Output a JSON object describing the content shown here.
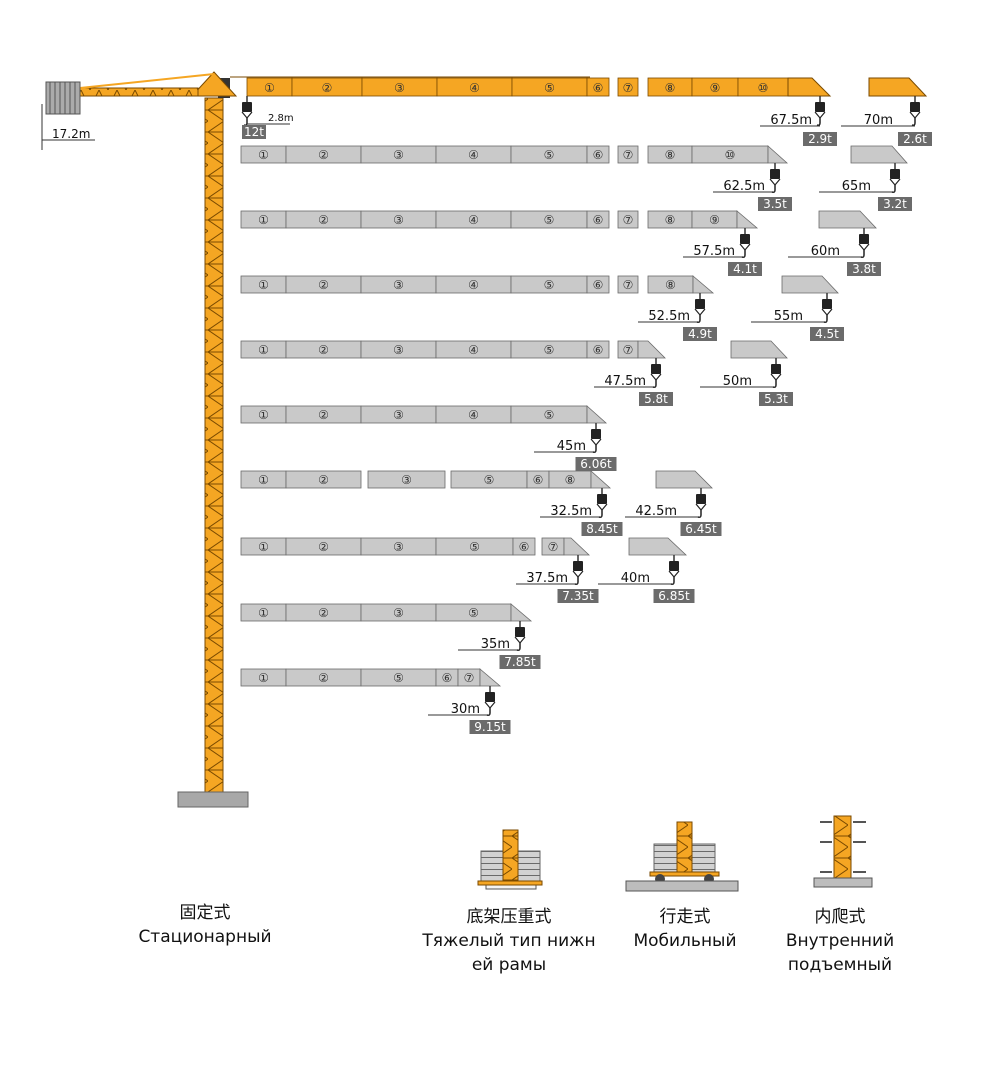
{
  "colors": {
    "yellow": "#F5A623",
    "grey_jib": "#C9C9C9",
    "outline": "#6a6a6a",
    "load_tag": "#6b6b6b",
    "load_text": "#ffffff",
    "text": "#111111"
  },
  "main_jib": {
    "segments": [
      "①",
      "②",
      "③",
      "④",
      "⑤",
      "⑥",
      "⑦",
      "⑧",
      "⑨",
      "⑩"
    ],
    "counter_jib_label": "17.2m",
    "trolley_offset_label": "2.8m",
    "max_load": "12t",
    "tip_radius": "67.5m",
    "tip_load": "2.9t",
    "alt_tip_radius": "70m",
    "alt_tip_load": "2.6t"
  },
  "configs": [
    {
      "segments": [
        "①",
        "②",
        "③",
        "④",
        "⑤",
        "⑥",
        "⑦",
        "⑧",
        "⑩"
      ],
      "radius": "62.5m",
      "load": "3.5t",
      "alt_radius": "65m",
      "alt_load": "3.2t"
    },
    {
      "segments": [
        "①",
        "②",
        "③",
        "④",
        "⑤",
        "⑥",
        "⑦",
        "⑧",
        "⑨"
      ],
      "radius": "57.5m",
      "load": "4.1t",
      "alt_radius": "60m",
      "alt_load": "3.8t"
    },
    {
      "segments": [
        "①",
        "②",
        "③",
        "④",
        "⑤",
        "⑥",
        "⑦",
        "⑧"
      ],
      "radius": "52.5m",
      "load": "4.9t",
      "alt_radius": "55m",
      "alt_load": "4.5t"
    },
    {
      "segments": [
        "①",
        "②",
        "③",
        "④",
        "⑤",
        "⑥",
        "⑦"
      ],
      "radius": "47.5m",
      "load": "5.8t",
      "alt_radius": "50m",
      "alt_load": "5.3t"
    },
    {
      "segments": [
        "①",
        "②",
        "③",
        "④",
        "⑤"
      ],
      "radius": "45m",
      "load": "6.06t"
    },
    {
      "segments": [
        "①",
        "②",
        "③",
        "⑤",
        "⑥",
        "⑧"
      ],
      "radius": "32.5m",
      "load": "8.45t",
      "alt_radius": "42.5m",
      "alt_load": "6.45t"
    },
    {
      "segments": [
        "①",
        "②",
        "③",
        "⑤",
        "⑥",
        "⑦"
      ],
      "radius": "37.5m",
      "load": "7.35t",
      "alt_radius": "40m",
      "alt_load": "6.85t"
    },
    {
      "segments": [
        "①",
        "②",
        "③",
        "⑤"
      ],
      "radius": "35m",
      "load": "7.85t"
    },
    {
      "segments": [
        "①",
        "②",
        "⑤",
        "⑥",
        "⑦"
      ],
      "radius": "30m",
      "load": "9.15t"
    }
  ],
  "base_types": [
    {
      "name_cn": "固定式",
      "name_ru": [
        "Стационарный"
      ]
    },
    {
      "name_cn": "底架压重式",
      "name_ru": [
        "Тяжелый тип нижн",
        "ей рамы"
      ]
    },
    {
      "name_cn": "行走式",
      "name_ru": [
        "Мобильный"
      ]
    },
    {
      "name_cn": "内爬式",
      "name_ru": [
        "Внутренний",
        "подъемный"
      ]
    }
  ]
}
